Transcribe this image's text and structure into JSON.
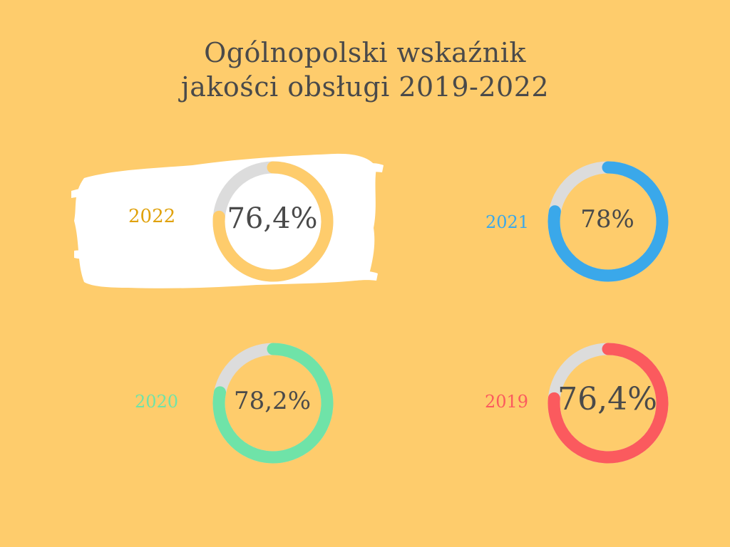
{
  "title": {
    "line1": "Ogólnopolski wskaźnik",
    "line2": "jakości obsługi 2019-2022"
  },
  "colors": {
    "background": "#fecc6c",
    "track": "#dcdcdc",
    "c2022": "#fecc6c",
    "c2021": "#3aa8ea",
    "c2020": "#6fe3a8",
    "c2019": "#fb5a5e"
  },
  "chart_data": {
    "type": "pie",
    "variant": "donut",
    "series": [
      {
        "year": "2022",
        "value": 76.4,
        "label": "76,4%",
        "color": "#fecc6c",
        "highlighted": true,
        "year_color": "#e0a10a"
      },
      {
        "year": "2021",
        "value": 78,
        "label": "78%",
        "color": "#3aa8ea",
        "highlighted": false,
        "year_color": "#3aa8ea"
      },
      {
        "year": "2020",
        "value": 78.2,
        "label": "78,2%",
        "color": "#6fe3a8",
        "highlighted": false,
        "year_color": "#6fe3a8"
      },
      {
        "year": "2019",
        "value": 76.4,
        "label": "76,4%",
        "color": "#fb5a5e",
        "highlighted": false,
        "year_color": "#fb5a5e"
      }
    ],
    "max": 100
  }
}
